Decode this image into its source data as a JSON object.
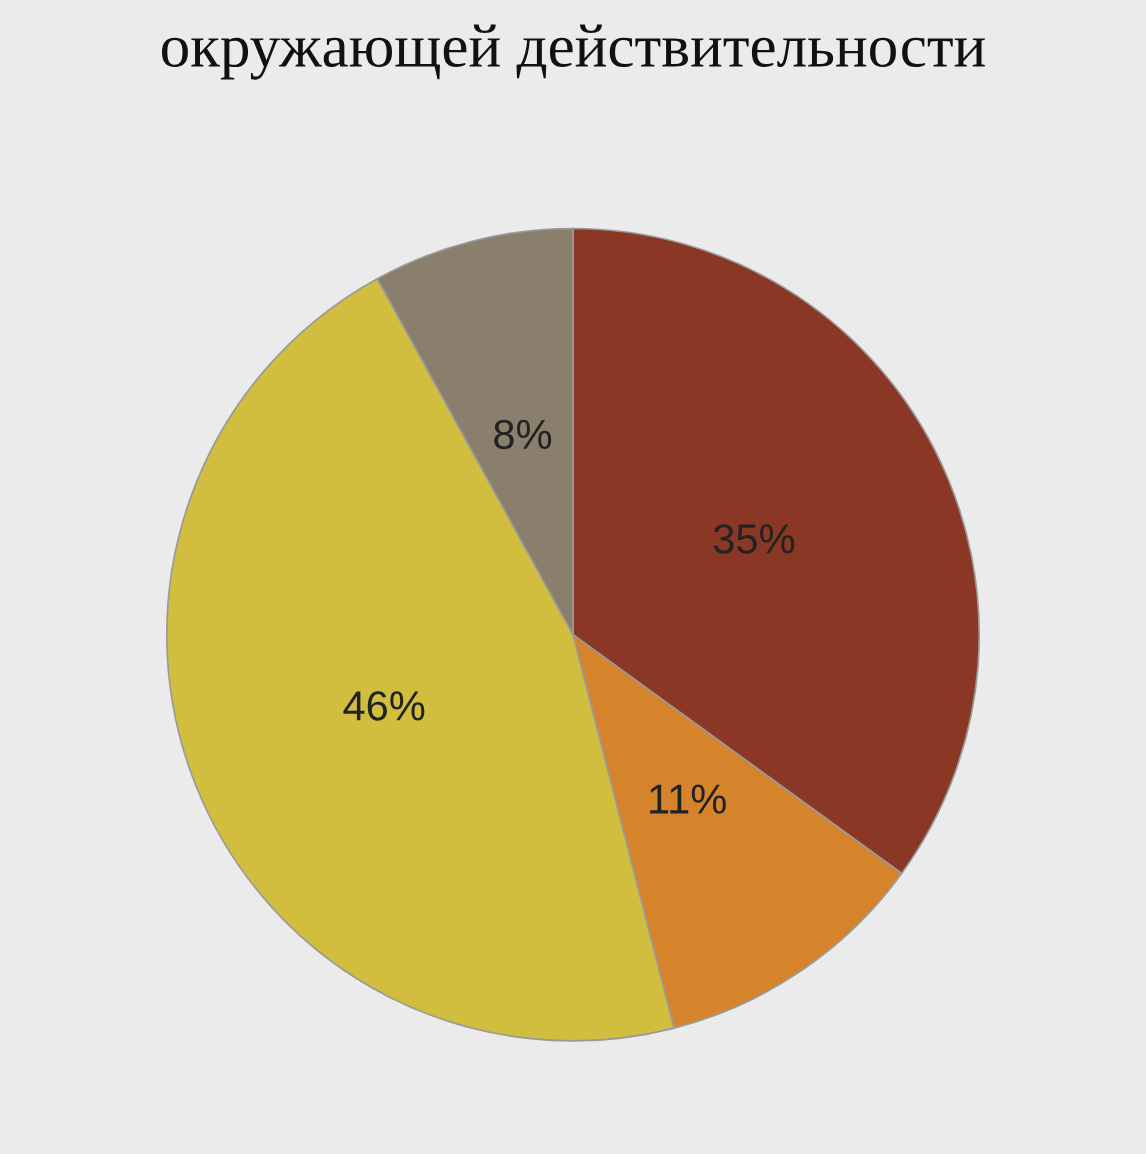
{
  "chart_data": {
    "type": "pie",
    "title": "окружающей действительности",
    "categories": [
      null,
      null,
      null,
      null
    ],
    "values": [
      35,
      11,
      46,
      8
    ],
    "value_labels": [
      "35%",
      "11%",
      "46%",
      "8%"
    ],
    "colors": [
      "#8a3726",
      "#d6842c",
      "#d1bd3e",
      "#8a7f6c"
    ]
  }
}
